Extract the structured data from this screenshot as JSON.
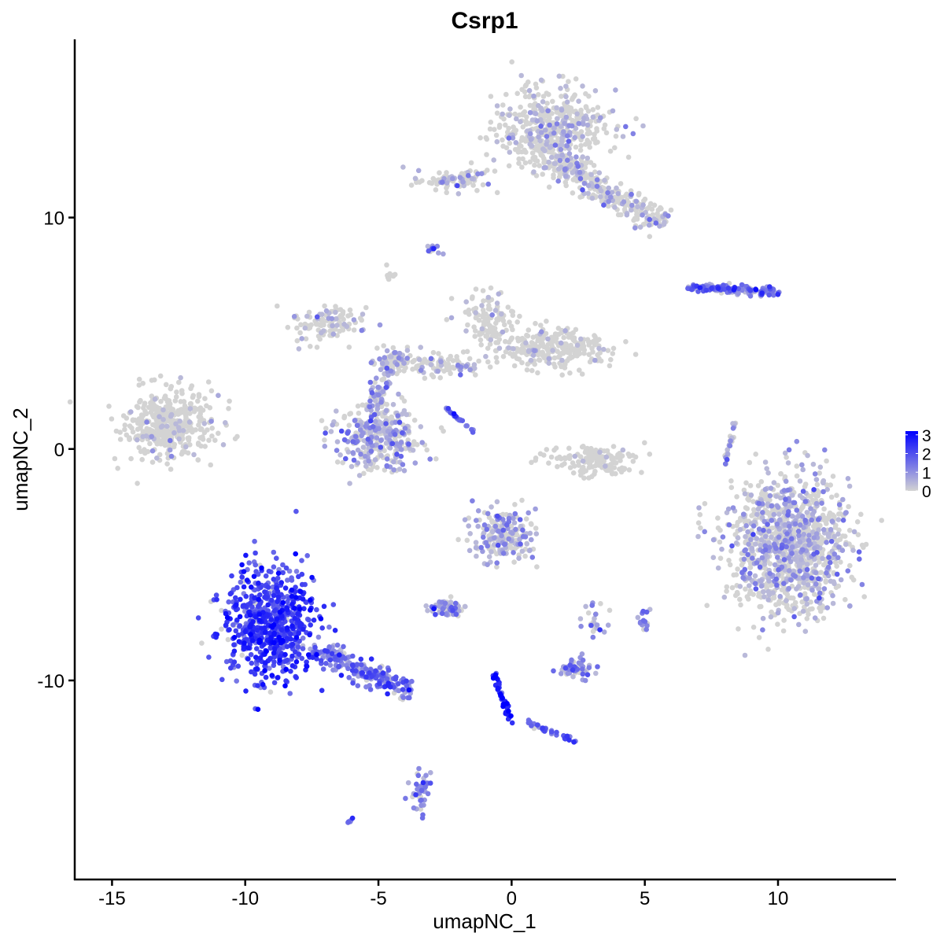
{
  "chart_data": {
    "type": "scatter",
    "title": "Csrp1",
    "xlabel": "umapNC_1",
    "ylabel": "umapNC_2",
    "xlim": [
      -16.4,
      14.4
    ],
    "ylim": [
      -18.6,
      17.7
    ],
    "xticks": [
      -15,
      -10,
      -5,
      0,
      5,
      10
    ],
    "xtick_labels": [
      "-15",
      "-10",
      "-5",
      "0",
      "5",
      "10"
    ],
    "yticks": [
      -10,
      0,
      10
    ],
    "ytick_labels": [
      "-10",
      "0",
      "10"
    ],
    "grid": false,
    "color_scale": {
      "low": "#d3d3d3",
      "high": "#0000ff",
      "min": 0,
      "max": 3.2,
      "ticks": [
        0,
        1,
        2,
        3
      ],
      "tick_labels": [
        "0",
        "1",
        "2",
        "3"
      ]
    },
    "legend_position": "right",
    "clusters": [
      {
        "cx": -12.8,
        "cy": 1.05,
        "sx": 0.9,
        "sy": 0.7,
        "n": 420,
        "expr": 0.08
      },
      {
        "cx": -9.1,
        "cy": -7.6,
        "sx": 0.85,
        "sy": 1.25,
        "n": 650,
        "expr": 2.2
      },
      {
        "line": [
          -7.4,
          -8.6,
          -3.9,
          -10.5
        ],
        "w": 0.5,
        "n": 220,
        "expr": 1.4
      },
      {
        "cx": 1.6,
        "cy": 13.8,
        "sx": 1.1,
        "sy": 0.9,
        "n": 500,
        "expr": 0.3
      },
      {
        "line": [
          1.5,
          12.5,
          5.7,
          9.7
        ],
        "w": 0.6,
        "n": 300,
        "expr": 0.35
      },
      {
        "cx": -2.1,
        "cy": 11.6,
        "sx": 0.6,
        "sy": 0.25,
        "n": 80,
        "expr": 0.5
      },
      {
        "cx": -5.0,
        "cy": 0.5,
        "sx": 0.8,
        "sy": 0.75,
        "n": 350,
        "expr": 0.7
      },
      {
        "cx": -6.8,
        "cy": 5.4,
        "sx": 0.7,
        "sy": 0.4,
        "n": 110,
        "expr": 0.3
      },
      {
        "cx": 1.6,
        "cy": 4.3,
        "sx": 1.1,
        "sy": 0.45,
        "n": 260,
        "expr": 0.1
      },
      {
        "cx": -0.9,
        "cy": 5.6,
        "sx": 0.5,
        "sy": 0.5,
        "n": 110,
        "expr": 0.15
      },
      {
        "line": [
          -5.0,
          3.9,
          -1.5,
          3.5
        ],
        "w": 0.5,
        "n": 140,
        "expr": 0.4
      },
      {
        "line": [
          -5.3,
          1.8,
          -4.2,
          4.2
        ],
        "w": 0.4,
        "n": 80,
        "expr": 0.8
      },
      {
        "cx": 3.3,
        "cy": -0.5,
        "sx": 0.9,
        "sy": 0.35,
        "n": 150,
        "expr": 0.05
      },
      {
        "cx": 10.4,
        "cy": -4.1,
        "sx": 1.1,
        "sy": 1.45,
        "n": 1200,
        "expr": 0.55
      },
      {
        "line": [
          6.7,
          7.0,
          10.0,
          6.8
        ],
        "w": 0.2,
        "n": 160,
        "expr": 1.3
      },
      {
        "cx": -0.3,
        "cy": -3.7,
        "sx": 0.6,
        "sy": 0.6,
        "n": 200,
        "expr": 0.7
      },
      {
        "cx": -2.4,
        "cy": -6.9,
        "sx": 0.35,
        "sy": 0.2,
        "n": 60,
        "expr": 1.0
      },
      {
        "cx": 2.4,
        "cy": -9.5,
        "sx": 0.35,
        "sy": 0.2,
        "n": 60,
        "expr": 1.1
      },
      {
        "line": [
          -0.7,
          -9.6,
          0.0,
          -11.9
        ],
        "w": 0.1,
        "n": 45,
        "expr": 2.5
      },
      {
        "line": [
          0.6,
          -11.8,
          2.5,
          -12.7
        ],
        "w": 0.1,
        "n": 35,
        "expr": 1.8
      },
      {
        "cx": -3.4,
        "cy": -14.7,
        "sx": 0.2,
        "sy": 0.5,
        "n": 40,
        "expr": 1.3
      },
      {
        "cx": -2.95,
        "cy": 8.6,
        "sx": 0.15,
        "sy": 0.1,
        "n": 12,
        "expr": 1.2
      },
      {
        "cx": -4.6,
        "cy": 7.5,
        "sx": 0.12,
        "sy": 0.15,
        "n": 10,
        "expr": 0.3
      },
      {
        "cx": -6.05,
        "cy": -16.1,
        "sx": 0.1,
        "sy": 0.08,
        "n": 5,
        "expr": 1.5
      },
      {
        "cx": 5.0,
        "cy": -7.4,
        "sx": 0.12,
        "sy": 0.25,
        "n": 14,
        "expr": 1.2
      },
      {
        "line": [
          8.0,
          -0.7,
          8.4,
          1.2
        ],
        "w": 0.08,
        "n": 30,
        "expr": 0.6
      },
      {
        "line": [
          -2.5,
          1.8,
          -1.4,
          0.7
        ],
        "w": 0.05,
        "n": 25,
        "expr": 1.5
      },
      {
        "cx": 3.2,
        "cy": -7.5,
        "sx": 0.3,
        "sy": 0.5,
        "n": 25,
        "expr": 0.9
      }
    ]
  }
}
